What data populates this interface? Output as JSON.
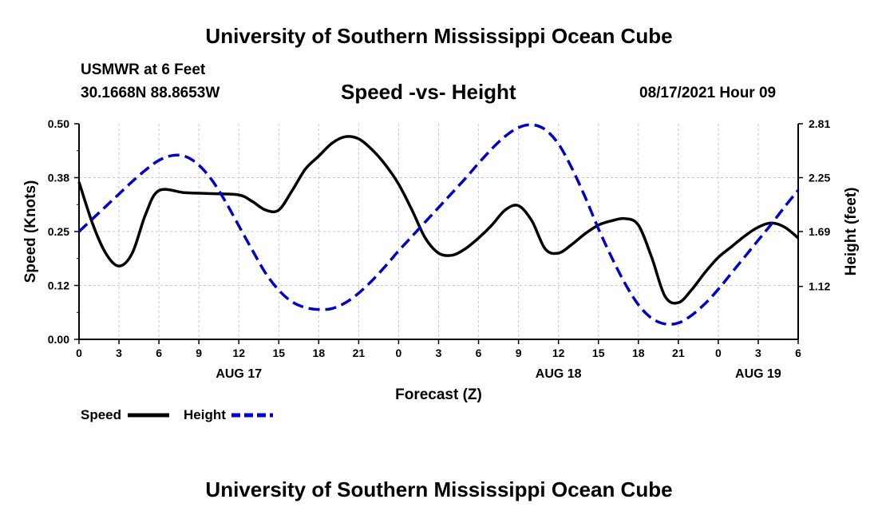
{
  "header": {
    "title": "University of Southern Mississippi Ocean Cube",
    "station": "USMWR at 6 Feet",
    "coords": "30.1668N  88.8653W",
    "date": "08/17/2021 Hour 09"
  },
  "footer": {
    "title": "University of Southern Mississippi Ocean Cube"
  },
  "chart_data": {
    "type": "line",
    "title": "Speed -vs- Height",
    "xlabel": "Forecast (Z)",
    "ylabel": "Speed (Knots)",
    "y2label": "Height (feet)",
    "xlim": [
      0,
      54
    ],
    "ylim": [
      0,
      0.5
    ],
    "y2lim": [
      0.57,
      2.81
    ],
    "grid": true,
    "x_ticks": [
      0,
      3,
      6,
      9,
      12,
      15,
      18,
      21,
      24,
      27,
      30,
      33,
      36,
      39,
      42,
      45,
      48,
      51,
      54
    ],
    "x_tick_labels": [
      "0",
      "3",
      "6",
      "9",
      "12",
      "15",
      "18",
      "21",
      "0",
      "3",
      "6",
      "9",
      "12",
      "15",
      "18",
      "21",
      "0",
      "3",
      "6"
    ],
    "y_ticks": [
      0.0,
      0.125,
      0.25,
      0.375,
      0.5
    ],
    "y_tick_labels": [
      "0.00",
      "0.12",
      "0.25",
      "0.38",
      "0.50"
    ],
    "y2_ticks": [
      1.12,
      1.69,
      2.25,
      2.81
    ],
    "y2_tick_labels": [
      "1.12",
      "1.69",
      "2.25",
      "2.81"
    ],
    "day_labels": [
      {
        "x": 12,
        "label": "AUG 17"
      },
      {
        "x": 36,
        "label": "AUG 18"
      },
      {
        "x": 51,
        "label": "AUG 19"
      }
    ],
    "legend": [
      {
        "label": "Speed",
        "color": "#000000",
        "dash": "solid"
      },
      {
        "label": "Height",
        "color": "#0000c8",
        "dash": "dashed"
      }
    ],
    "series": [
      {
        "name": "Speed",
        "axis": "left",
        "color": "#000000",
        "x": [
          0,
          1,
          2,
          3,
          4,
          5,
          6,
          8,
          10,
          12,
          13,
          14,
          15,
          16,
          17,
          18,
          19,
          20,
          21,
          22,
          23,
          24,
          25,
          26,
          27,
          28,
          29,
          30,
          31,
          32,
          33,
          34,
          35,
          36,
          37,
          38,
          39,
          40,
          41,
          42,
          43,
          44,
          45,
          46,
          47,
          48,
          49,
          50,
          51,
          52,
          53,
          54
        ],
        "values": [
          0.365,
          0.27,
          0.2,
          0.17,
          0.2,
          0.29,
          0.345,
          0.34,
          0.338,
          0.335,
          0.32,
          0.3,
          0.3,
          0.345,
          0.395,
          0.425,
          0.455,
          0.47,
          0.465,
          0.44,
          0.405,
          0.36,
          0.3,
          0.235,
          0.2,
          0.195,
          0.21,
          0.235,
          0.265,
          0.3,
          0.31,
          0.275,
          0.21,
          0.2,
          0.22,
          0.245,
          0.265,
          0.275,
          0.28,
          0.265,
          0.19,
          0.1,
          0.085,
          0.115,
          0.155,
          0.19,
          0.215,
          0.24,
          0.26,
          0.27,
          0.26,
          0.235
        ]
      },
      {
        "name": "Height",
        "axis": "right",
        "color": "#0000c8",
        "x": [
          0,
          1,
          2,
          3,
          4,
          5,
          6,
          7,
          8,
          9,
          10,
          11,
          12,
          13,
          14,
          15,
          16,
          17,
          18,
          19,
          20,
          21,
          22,
          23,
          24,
          25,
          26,
          27,
          28,
          29,
          30,
          31,
          32,
          33,
          34,
          35,
          36,
          37,
          38,
          39,
          40,
          41,
          42,
          43,
          44,
          45,
          46,
          47,
          48,
          49,
          50,
          51,
          52,
          53,
          54
        ],
        "values": [
          1.69,
          1.82,
          1.95,
          2.08,
          2.21,
          2.33,
          2.43,
          2.48,
          2.47,
          2.38,
          2.22,
          2.0,
          1.75,
          1.5,
          1.26,
          1.08,
          0.96,
          0.9,
          0.88,
          0.89,
          0.95,
          1.05,
          1.18,
          1.33,
          1.49,
          1.64,
          1.79,
          1.94,
          2.09,
          2.24,
          2.4,
          2.55,
          2.68,
          2.77,
          2.8,
          2.75,
          2.6,
          2.35,
          2.05,
          1.72,
          1.42,
          1.15,
          0.93,
          0.79,
          0.73,
          0.74,
          0.82,
          0.94,
          1.09,
          1.26,
          1.43,
          1.6,
          1.77,
          1.95,
          2.12
        ]
      }
    ]
  }
}
